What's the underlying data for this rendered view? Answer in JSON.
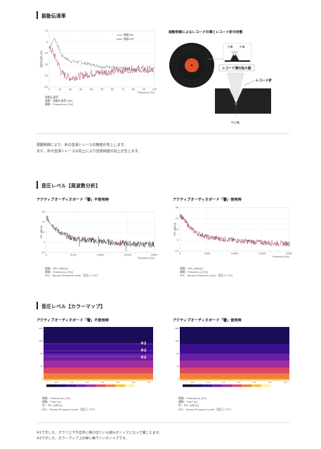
{
  "sections": {
    "vibration": "振動伝達率",
    "spl_freq": "音圧レベル【周波数分析】",
    "spl_color": "音圧レベル【カラーマップ】"
  },
  "vibration_chart": {
    "legend": [
      "制振ON",
      "制振OFF"
    ],
    "caption": [
      "振動伝達率",
      "縦軸：振動伝達率 [dB]",
      "横軸：Frequency [Hz]"
    ],
    "colors": {
      "on": "#7a7a7a",
      "off": "#a0405a"
    }
  },
  "diagram": {
    "title": "振動制御によるレコードの溝とレコード針の状態",
    "label_left": "内溝",
    "label_right": "外溝",
    "groove_box": "レコード溝の拡大図",
    "needle_label": "レコード針",
    "center_label": "中心軸"
  },
  "body_lines": [
    "振動制御により、針の音溝トレースの精度が向上します。",
    "また、針の音溝トレースの向上により音質純度の向上が生じます。"
  ],
  "freq_charts": [
    {
      "title": "アクティブオーディオボード「響」不使用時",
      "caption": [
        "縦軸：SPL [dB(A)]",
        "横軸：Frequency [Hz]",
        "SPL：Sound Pressure Level（音圧レベル）"
      ],
      "markers": [
        "※1",
        "※1",
        "※1"
      ]
    },
    {
      "title": "アクティブオーディオボード「響」使用時",
      "caption": [
        "縦軸：SPL [dB(A)]",
        "横軸：Frequency [Hz]",
        "SPL：Sound Pressure Level（音圧レベル）"
      ]
    }
  ],
  "color_charts": [
    {
      "title": "アクティブオーディオボード「響」不使用時",
      "caption": [
        "縦軸：Frequency [Hz]",
        "横軸：Time [s]",
        "色：SPL [dB(A)]",
        "SPL：Sound Pressure Level（音圧レベル）"
      ],
      "markers": [
        "※2",
        "※2",
        "※2"
      ]
    },
    {
      "title": "アクティブオーディオボード「響」使用時",
      "caption": [
        "縦軸：Frequency [Hz]",
        "横軸：Time [s]",
        "色：SPL [dB(A)]",
        "SPL：Sound Pressure Level（音圧レベル）"
      ]
    }
  ],
  "notes": [
    "※1で示した、グラフ上で不自然に飛び出ている部分がノイズとなって聞こえます。",
    "※2で示した、カラーマップ上の細い横ラインがノイズです。"
  ],
  "chart_data": [
    {
      "type": "line",
      "xlabel": "Frequency [Hz]",
      "ylabel": "振動伝達率 [dB]",
      "xlim": [
        0,
        100
      ],
      "ylim": [
        -40,
        10
      ],
      "xticks": [
        0,
        10,
        20,
        30,
        40,
        50,
        60,
        70,
        80,
        90,
        100
      ],
      "yticks": [
        10,
        0,
        -10,
        -20,
        -30,
        -40
      ],
      "series": [
        {
          "name": "制振ON",
          "x": [
            0,
            3,
            5,
            8,
            12,
            20,
            30,
            40,
            50,
            60,
            70,
            80,
            90,
            100
          ],
          "values": [
            -5,
            -1,
            4,
            -3,
            -12,
            -17,
            -18,
            -20,
            -22,
            -22,
            -24,
            -24,
            -26,
            -26
          ]
        },
        {
          "name": "制振OFF",
          "x": [
            0,
            3,
            5,
            8,
            12,
            20,
            30,
            40,
            50,
            60,
            70,
            80,
            90,
            100
          ],
          "values": [
            -6,
            -8,
            -12,
            -18,
            -28,
            -32,
            -30,
            -28,
            -27,
            -26,
            -25,
            -24,
            -24,
            -25
          ]
        }
      ]
    },
    {
      "type": "line",
      "xlabel": "Frequency [Hz]",
      "ylabel": "SPL [dB(A)]",
      "xlim": [
        0,
        20000
      ],
      "ylim": [
        -10,
        30
      ],
      "xticks": [
        0,
        5000,
        10000,
        15000,
        20000
      ],
      "yticks": [
        30,
        20,
        10,
        0,
        -10
      ],
      "series": [
        {
          "x": [
            0,
            1000,
            2000,
            3000,
            5000,
            8000,
            10000,
            12000,
            15000,
            18000,
            20000
          ],
          "values": [
            25,
            18,
            12,
            8,
            4,
            2,
            1,
            0,
            -1,
            -2,
            -2
          ]
        }
      ]
    },
    {
      "type": "line",
      "xlabel": "Frequency [Hz]",
      "ylabel": "SPL [dB(A)]",
      "xlim": [
        0,
        20000
      ],
      "ylim": [
        -10,
        30
      ],
      "xticks": [
        0,
        5000,
        10000,
        15000,
        20000
      ],
      "yticks": [
        30,
        20,
        10,
        0,
        -10
      ],
      "series": [
        {
          "x": [
            0,
            1000,
            2000,
            3000,
            5000,
            8000,
            10000,
            12000,
            15000,
            18000,
            20000
          ],
          "values": [
            24,
            17,
            11,
            7,
            3,
            1,
            0,
            -1,
            -2,
            -3,
            -3
          ]
        }
      ]
    },
    {
      "type": "heatmap",
      "xlabel": "Time [s]",
      "ylabel": "Frequency [Hz]",
      "colorbar_label": "SPL [dB(A)]"
    },
    {
      "type": "heatmap",
      "xlabel": "Time [s]",
      "ylabel": "Frequency [Hz]",
      "colorbar_label": "SPL [dB(A)]"
    }
  ]
}
